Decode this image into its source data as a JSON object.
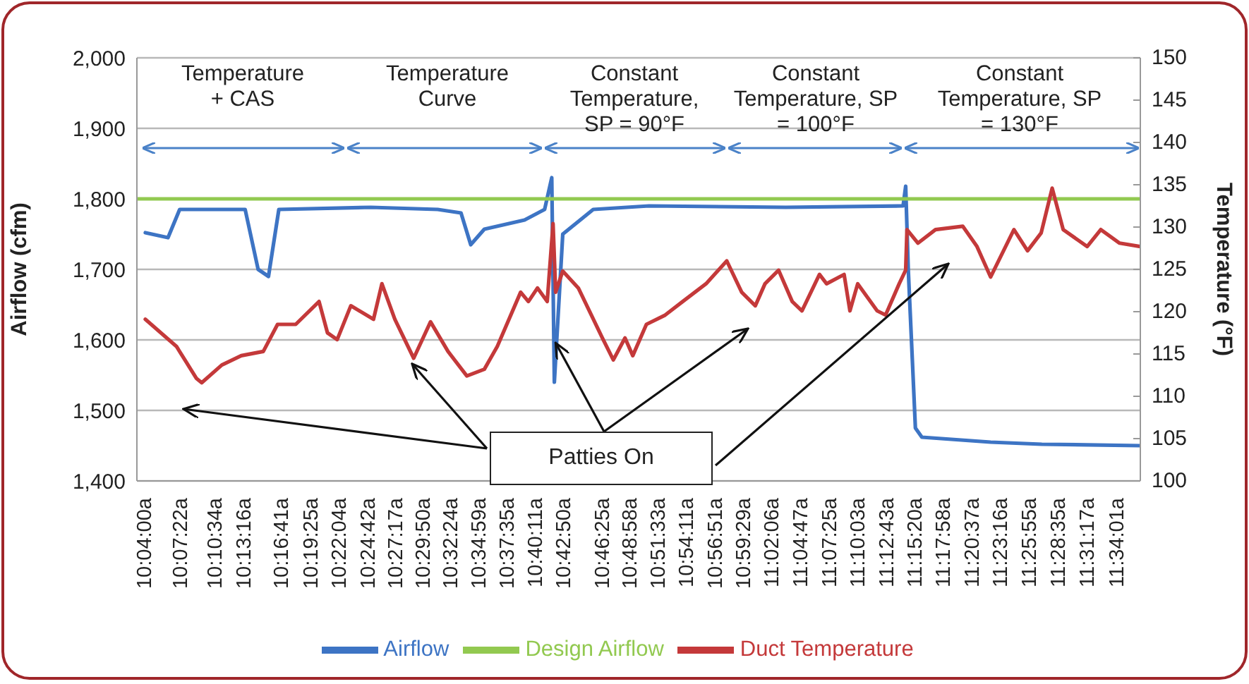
{
  "chart_data": {
    "type": "line",
    "ylabel": "Airflow (cfm)",
    "y2label": "Temperature (°F)",
    "annotations": [
      "Temperature + CAS",
      "Temperature Curve",
      "Constant Temperature, SP = 90°F",
      "Constant Temperature, SP = 100°F",
      "Constant Temperature, SP = 130°F",
      {
        "text": "Patties On",
        "x": 10.7,
        "y": 1610
      }
    ],
    "xlim": [
      10.054,
      11.602
    ],
    "xticks": [
      {
        "value": 10.0667,
        "label": "10:04:00a"
      },
      {
        "value": 10.1228,
        "label": "10:07:22a"
      },
      {
        "value": 10.1761,
        "label": "10:10:34a"
      },
      {
        "value": 10.2211,
        "label": "10:13:16a"
      },
      {
        "value": 10.2781,
        "label": "10:16:41a"
      },
      {
        "value": 10.3236,
        "label": "10:19:25a"
      },
      {
        "value": 10.3678,
        "label": "10:22:04a"
      },
      {
        "value": 10.4117,
        "label": "10:24:42a"
      },
      {
        "value": 10.4547,
        "label": "10:27:17a"
      },
      {
        "value": 10.4972,
        "label": "10:29:50a"
      },
      {
        "value": 10.54,
        "label": "10:32:24a"
      },
      {
        "value": 10.5831,
        "label": "10:34:59a"
      },
      {
        "value": 10.6264,
        "label": "10:37:35a"
      },
      {
        "value": 10.6697,
        "label": "10:40:11a"
      },
      {
        "value": 10.7139,
        "label": "10:42:50a"
      },
      {
        "value": 10.7736,
        "label": "10:46:25a"
      },
      {
        "value": 10.8161,
        "label": "10:48:58a"
      },
      {
        "value": 10.8592,
        "label": "10:51:33a"
      },
      {
        "value": 10.9031,
        "label": "10:54:11a"
      },
      {
        "value": 10.9475,
        "label": "10:56:51a"
      },
      {
        "value": 10.9914,
        "label": "10:59:29a"
      },
      {
        "value": 11.035,
        "label": "11:02:06a"
      },
      {
        "value": 11.0797,
        "label": "11:04:47a"
      },
      {
        "value": 11.1236,
        "label": "11:07:25a"
      },
      {
        "value": 11.1675,
        "label": "11:10:03a"
      },
      {
        "value": 11.2119,
        "label": "11:12:43a"
      },
      {
        "value": 11.2556,
        "label": "11:15:20a"
      },
      {
        "value": 11.2994,
        "label": "11:17:58a"
      },
      {
        "value": 11.3436,
        "label": "11:20:37a"
      },
      {
        "value": 11.3878,
        "label": "11:23:16a"
      },
      {
        "value": 11.4319,
        "label": "11:25:55a"
      },
      {
        "value": 11.4764,
        "label": "11:28:35a"
      },
      {
        "value": 11.5214,
        "label": "11:31:17a"
      },
      {
        "value": 11.5669,
        "label": "11:34:01a"
      }
    ],
    "ylim": [
      1400,
      2000
    ],
    "yticks": [
      {
        "value": 1400,
        "label": "1,400"
      },
      {
        "value": 1500,
        "label": "1,500"
      },
      {
        "value": 1600,
        "label": "1,600"
      },
      {
        "value": 1700,
        "label": "1,700"
      },
      {
        "value": 1800,
        "label": "1,800"
      },
      {
        "value": 1900,
        "label": "1,900"
      },
      {
        "value": 2000,
        "label": "2,000"
      }
    ],
    "y2lim": [
      100,
      150
    ],
    "y2ticks": [
      100,
      105,
      110,
      115,
      120,
      125,
      130,
      135,
      140,
      145,
      150
    ],
    "grid": "y",
    "legend": "bottom",
    "series": [
      {
        "name": "Airflow",
        "color": "#3d74c4",
        "x": [
          10.067,
          10.102,
          10.12,
          10.221,
          10.241,
          10.257,
          10.273,
          10.415,
          10.518,
          10.554,
          10.569,
          10.59,
          10.652,
          10.683,
          10.694,
          10.698,
          10.711,
          10.758,
          10.844,
          11.055,
          11.236,
          11.24,
          11.244,
          11.255,
          11.265,
          11.371,
          11.45,
          11.602
        ],
        "values": [
          1752,
          1745,
          1785,
          1785,
          1700,
          1690,
          1785,
          1788,
          1785,
          1780,
          1735,
          1757,
          1770,
          1785,
          1830,
          1540,
          1750,
          1785,
          1790,
          1788,
          1790,
          1818,
          1700,
          1475,
          1462,
          1455,
          1452,
          1450
        ]
      },
      {
        "name": "Design Airflow",
        "color": "#92c950",
        "x": [
          10.054,
          11.602
        ],
        "values": [
          1800,
          1800
        ]
      },
      {
        "name": "Duct Temperature",
        "color": "#c4393a",
        "axis": "y2",
        "x": [
          10.067,
          10.115,
          10.146,
          10.154,
          10.185,
          10.215,
          10.249,
          10.271,
          10.299,
          10.335,
          10.348,
          10.363,
          10.384,
          10.419,
          10.432,
          10.452,
          10.481,
          10.507,
          10.534,
          10.563,
          10.59,
          10.61,
          10.646,
          10.658,
          10.672,
          10.687,
          10.696,
          10.7,
          10.711,
          10.735,
          10.772,
          10.789,
          10.807,
          10.819,
          10.84,
          10.869,
          10.896,
          10.932,
          10.964,
          10.987,
          11.008,
          11.023,
          11.044,
          11.065,
          11.08,
          11.107,
          11.118,
          11.145,
          11.154,
          11.166,
          11.196,
          11.209,
          11.23,
          11.24,
          11.242,
          11.259,
          11.286,
          11.328,
          11.35,
          11.371,
          11.407,
          11.428,
          11.449,
          11.466,
          11.483,
          11.52,
          11.541,
          11.57,
          11.602
        ],
        "values": [
          119.1,
          115.9,
          112.1,
          111.6,
          113.7,
          114.8,
          115.3,
          118.5,
          118.5,
          121.2,
          117.5,
          116.7,
          120.7,
          119.1,
          123.3,
          119.1,
          114.5,
          118.8,
          115.3,
          112.4,
          113.2,
          115.9,
          122.3,
          121.2,
          122.8,
          121.2,
          130.4,
          122.3,
          124.8,
          122.8,
          116.9,
          114.3,
          116.9,
          114.8,
          118.5,
          119.6,
          121.2,
          123.3,
          126,
          122.3,
          120.7,
          123.3,
          124.9,
          121.2,
          120.1,
          124.4,
          123.3,
          124.4,
          120.1,
          123.3,
          120.1,
          119.6,
          123.3,
          124.9,
          129.7,
          128.1,
          129.7,
          130.1,
          127.7,
          124.1,
          129.7,
          127.2,
          129.3,
          134.6,
          129.7,
          127.7,
          129.7,
          128.1,
          127.7
        ]
      }
    ]
  }
}
